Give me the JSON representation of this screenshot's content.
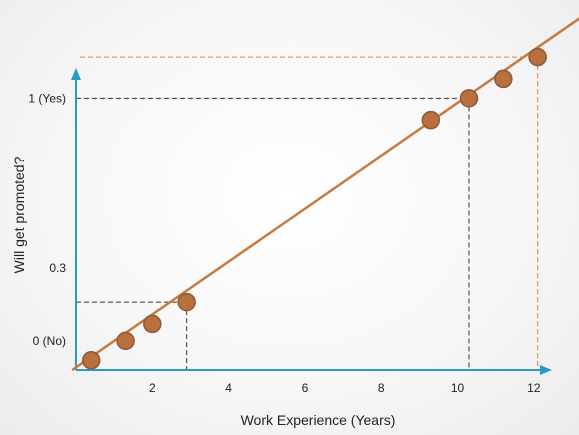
{
  "chart_data": {
    "type": "line",
    "title": "",
    "xlabel": "Work Experience (Years)",
    "ylabel": "Will get promoted?",
    "xlim": [
      0,
      13
    ],
    "ylim": [
      -0.12,
      1.29
    ],
    "x_ticks": [
      {
        "value": 2,
        "label": "2"
      },
      {
        "value": 4,
        "label": "4"
      },
      {
        "value": 6,
        "label": "6"
      },
      {
        "value": 8,
        "label": "8"
      },
      {
        "value": 10,
        "label": "10"
      },
      {
        "value": 12,
        "label": "12"
      }
    ],
    "y_ticks": [
      {
        "value": 0,
        "label": "0 (No)"
      },
      {
        "value": 0.3,
        "label": "0.3"
      },
      {
        "value": 1,
        "label": "1 (Yes)"
      }
    ],
    "regression_line": {
      "x": [
        -0.1,
        13.2
      ],
      "y": [
        -0.12,
        1.33
      ]
    },
    "points": [
      {
        "x": 0.4,
        "y": -0.08
      },
      {
        "x": 1.3,
        "y": 0.0
      },
      {
        "x": 2.0,
        "y": 0.07
      },
      {
        "x": 2.9,
        "y": 0.16
      },
      {
        "x": 9.3,
        "y": 0.91
      },
      {
        "x": 10.3,
        "y": 1.0
      },
      {
        "x": 11.2,
        "y": 1.08
      },
      {
        "x": 12.1,
        "y": 1.17
      }
    ],
    "guide_lines": [
      {
        "x": 2.9,
        "y": 0.16
      },
      {
        "x": 10.3,
        "y": 1.0
      },
      {
        "x": 12.1,
        "y": 1.17
      }
    ],
    "colors": {
      "line": "#c87a3e",
      "point_fill": "#b9703e",
      "point_stroke": "#8a5a3c",
      "axis": "#2a9bc4",
      "guide": "#333333",
      "guide_highlight": "#d9834a"
    }
  }
}
